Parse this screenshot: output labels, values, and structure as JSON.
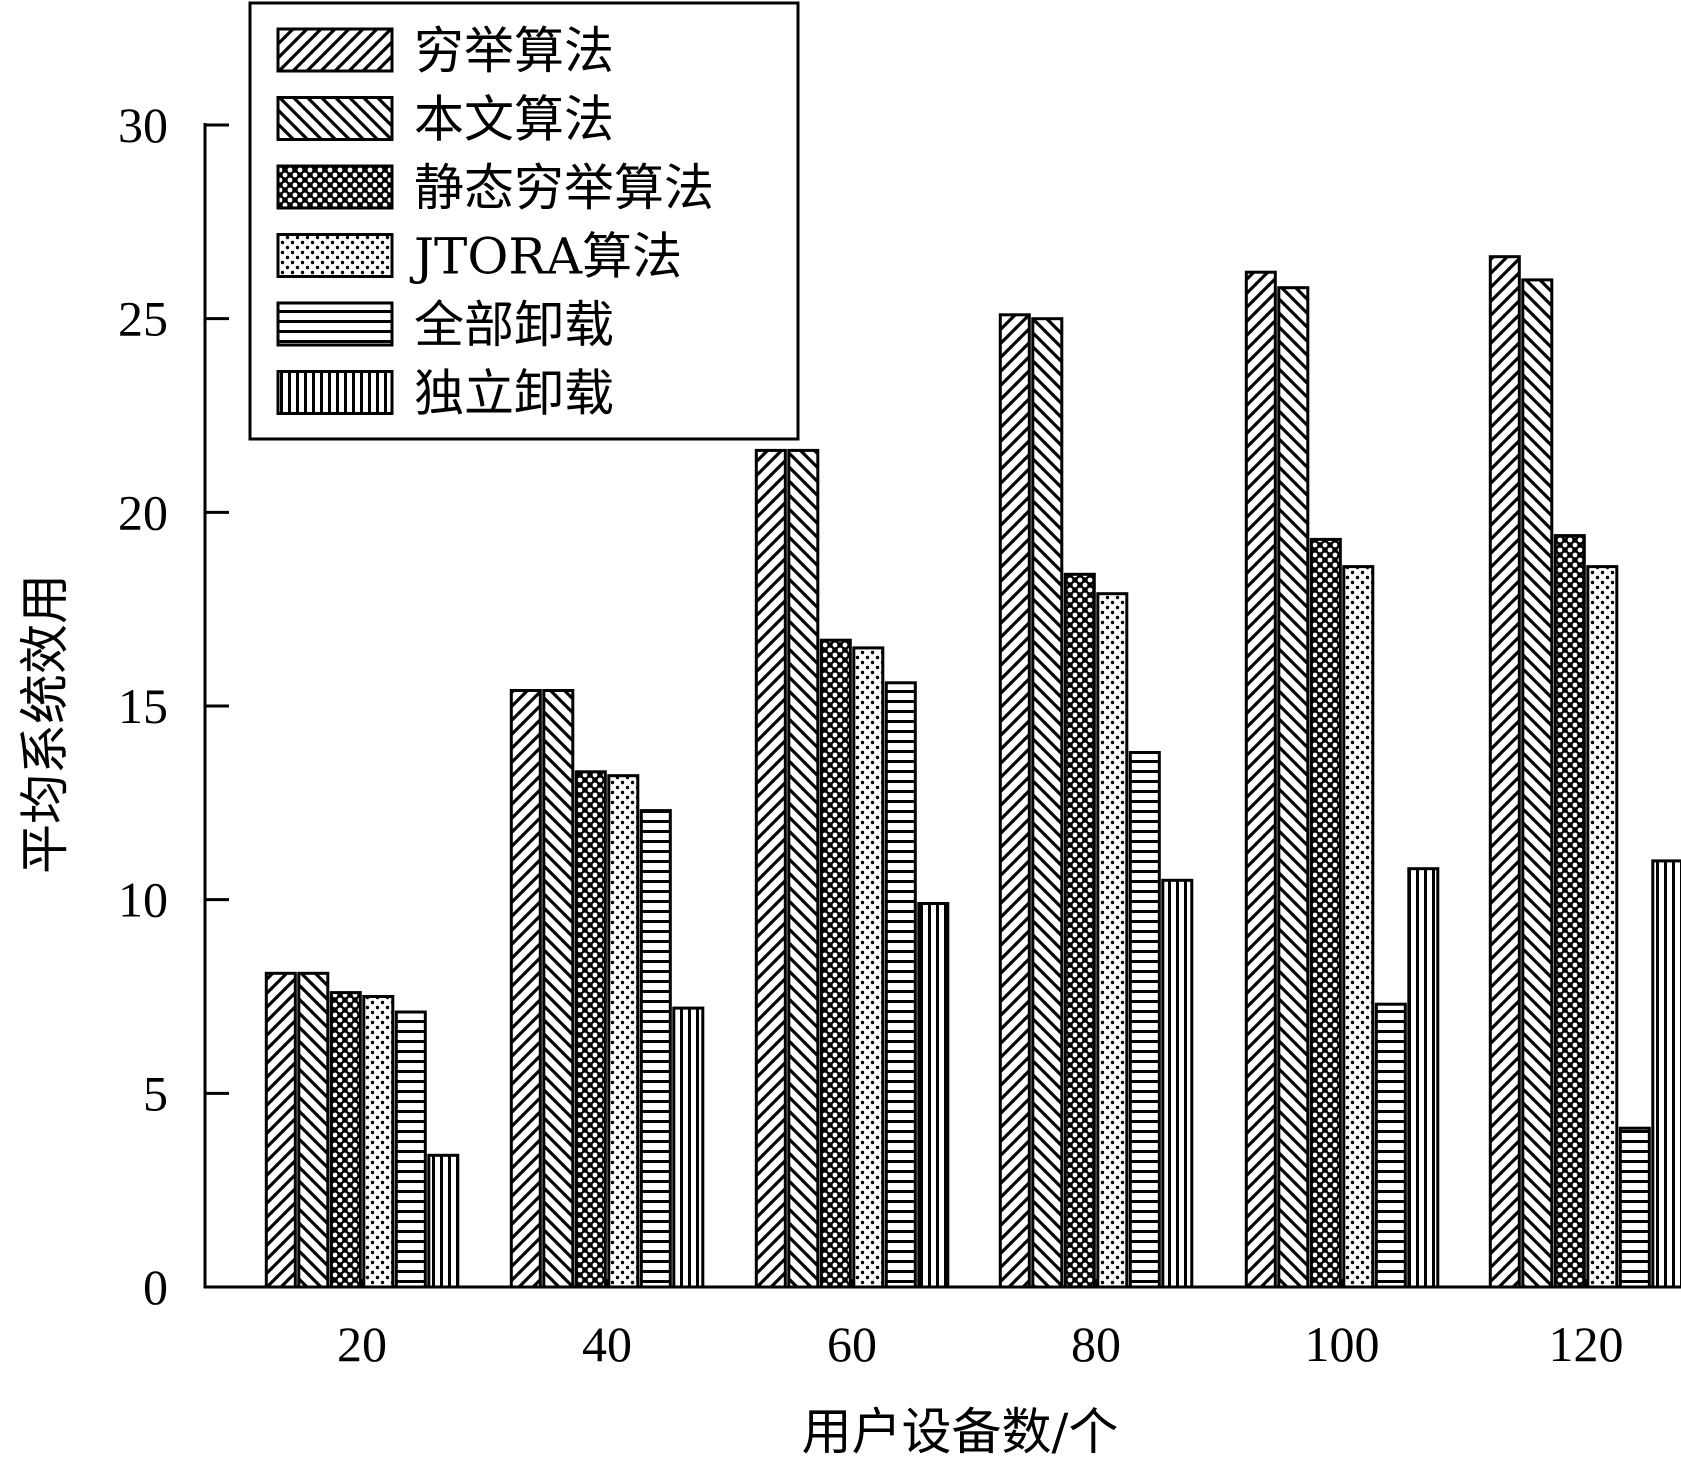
{
  "chart_data": {
    "type": "bar",
    "xlabel": "用户设备数/个",
    "ylabel": "平均系统效用",
    "categories": [
      "20",
      "40",
      "60",
      "80",
      "100",
      "120"
    ],
    "ylim": [
      0,
      30
    ],
    "yticks": [
      0,
      5,
      10,
      15,
      20,
      25,
      30
    ],
    "grid": false,
    "legend_position": "top-left",
    "series": [
      {
        "name": "穷举算法",
        "pattern": "diag-forward",
        "values": [
          8.1,
          15.4,
          21.6,
          25.1,
          26.2,
          26.6
        ]
      },
      {
        "name": "本文算法",
        "pattern": "diag-backward",
        "values": [
          8.1,
          15.4,
          21.6,
          25.0,
          25.8,
          26.0
        ]
      },
      {
        "name": "静态穷举算法",
        "pattern": "crosshatch",
        "values": [
          7.6,
          13.3,
          16.7,
          18.4,
          19.3,
          19.4
        ]
      },
      {
        "name": "JTORA算法",
        "pattern": "dots",
        "values": [
          7.5,
          13.2,
          16.5,
          17.9,
          18.6,
          18.6
        ]
      },
      {
        "name": "全部卸载",
        "pattern": "horizontal",
        "values": [
          7.1,
          12.3,
          15.6,
          13.8,
          7.3,
          4.1
        ]
      },
      {
        "name": "独立卸载",
        "pattern": "vertical",
        "values": [
          3.4,
          7.2,
          9.9,
          10.5,
          10.8,
          11.0
        ]
      }
    ]
  }
}
